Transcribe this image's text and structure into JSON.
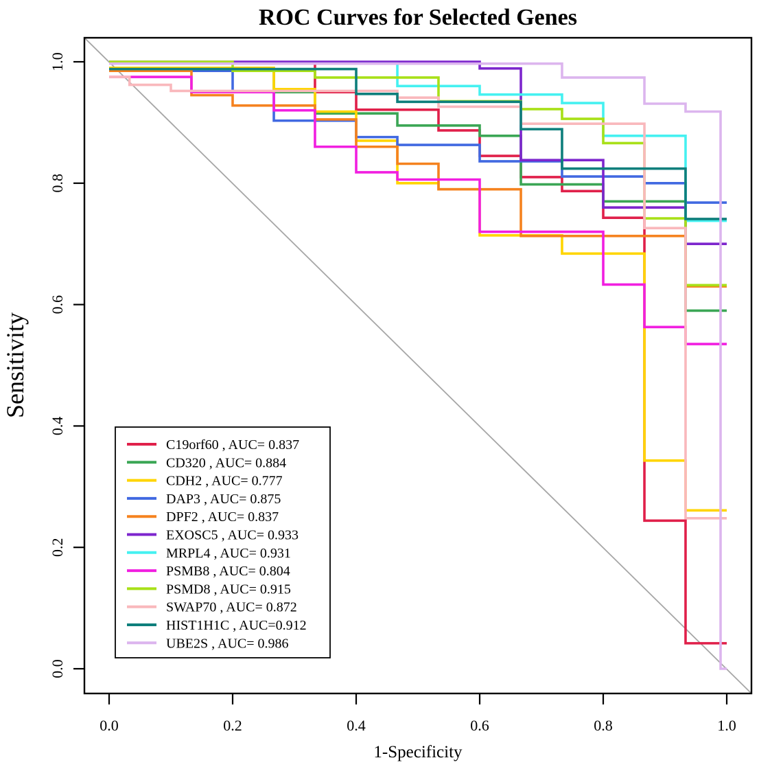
{
  "chart_data": {
    "type": "line",
    "subtype": "roc-step-curves",
    "title": "ROC Curves for Selected Genes",
    "xlabel": "1-Specificity",
    "ylabel": "Sensitivity",
    "xlim": [
      0,
      1
    ],
    "ylim": [
      0,
      1
    ],
    "x_ticks": [
      "0.0",
      "0.2",
      "0.4",
      "0.6",
      "0.8",
      "1.0"
    ],
    "y_ticks": [
      "0.0",
      "0.2",
      "0.4",
      "0.6",
      "0.8",
      "1.0"
    ],
    "grid": false,
    "diagonal_reference_line": true,
    "diagonal_color": "#a6a6a6",
    "legend_position": "bottom-left",
    "series": [
      {
        "name": "C19orf60",
        "auc": 0.837,
        "legend_label": "C19orf60 , AUC= 0.837",
        "color": "#e0204a",
        "start": 0.998,
        "steps": [
          [
            0.3333,
            0.95
          ],
          [
            0.4,
            0.921
          ],
          [
            0.5333,
            0.887
          ],
          [
            0.6,
            0.845
          ],
          [
            0.6667,
            0.81
          ],
          [
            0.7333,
            0.787
          ],
          [
            0.8,
            0.743
          ],
          [
            0.8667,
            0.244
          ],
          [
            0.9333,
            0.042
          ]
        ]
      },
      {
        "name": "CD320",
        "auc": 0.884,
        "legend_label": "CD320 , AUC= 0.884",
        "color": "#3ba655",
        "start": 0.985,
        "steps": [
          [
            0.2667,
            0.95
          ],
          [
            0.3333,
            0.915
          ],
          [
            0.4667,
            0.895
          ],
          [
            0.6,
            0.878
          ],
          [
            0.6667,
            0.798
          ],
          [
            0.8,
            0.77
          ],
          [
            0.9333,
            0.59
          ]
        ]
      },
      {
        "name": "CDH2",
        "auc": 0.777,
        "legend_label": "CDH2 , AUC= 0.777",
        "color": "#ffd500",
        "start": 0.99,
        "steps": [
          [
            0.2667,
            0.955
          ],
          [
            0.3333,
            0.918
          ],
          [
            0.4,
            0.87
          ],
          [
            0.4667,
            0.8
          ],
          [
            0.5333,
            0.79
          ],
          [
            0.6,
            0.714
          ],
          [
            0.7333,
            0.684
          ],
          [
            0.8667,
            0.343
          ],
          [
            0.9333,
            0.261
          ]
        ]
      },
      {
        "name": "DAP3",
        "auc": 0.875,
        "legend_label": "DAP3 , AUC= 0.875",
        "color": "#4169e1",
        "start": 0.985,
        "steps": [
          [
            0.2,
            0.95
          ],
          [
            0.2667,
            0.903
          ],
          [
            0.4,
            0.876
          ],
          [
            0.4667,
            0.863
          ],
          [
            0.6,
            0.836
          ],
          [
            0.7333,
            0.811
          ],
          [
            0.8667,
            0.8
          ],
          [
            0.9333,
            0.768
          ]
        ]
      },
      {
        "name": "DPF2",
        "auc": 0.837,
        "legend_label": "DPF2 , AUC= 0.837",
        "color": "#f5821f",
        "start": 0.985,
        "steps": [
          [
            0.1333,
            0.945
          ],
          [
            0.2,
            0.928
          ],
          [
            0.3333,
            0.905
          ],
          [
            0.4,
            0.86
          ],
          [
            0.4667,
            0.832
          ],
          [
            0.5333,
            0.79
          ],
          [
            0.6667,
            0.713
          ],
          [
            0.9333,
            0.63
          ]
        ]
      },
      {
        "name": "EXOSC5",
        "auc": 0.933,
        "legend_label": "EXOSC5 , AUC= 0.933",
        "color": "#7d26cd",
        "start": 1.0,
        "steps": [
          [
            0.6,
            0.989
          ],
          [
            0.6667,
            0.838
          ],
          [
            0.8,
            0.76
          ],
          [
            0.9333,
            0.7
          ]
        ]
      },
      {
        "name": "MRPL4",
        "auc": 0.931,
        "legend_label": "MRPL4 , AUC= 0.931",
        "color": "#45f1f1",
        "start": 0.997,
        "steps": [
          [
            0.4667,
            0.96
          ],
          [
            0.6,
            0.946
          ],
          [
            0.7333,
            0.932
          ],
          [
            0.8,
            0.878
          ],
          [
            0.9333,
            0.738
          ]
        ]
      },
      {
        "name": "PSMB8",
        "auc": 0.804,
        "legend_label": "PSMB8 , AUC= 0.804",
        "color": "#f11fe0",
        "start": 0.975,
        "steps": [
          [
            0.1333,
            0.95
          ],
          [
            0.2667,
            0.92
          ],
          [
            0.3333,
            0.86
          ],
          [
            0.4,
            0.818
          ],
          [
            0.4667,
            0.806
          ],
          [
            0.6,
            0.72
          ],
          [
            0.8,
            0.633
          ],
          [
            0.8667,
            0.563
          ],
          [
            0.9333,
            0.535
          ]
        ]
      },
      {
        "name": "PSMD8",
        "auc": 0.915,
        "legend_label": "PSMD8 , AUC= 0.915",
        "color": "#a8e018",
        "start": 1.0,
        "steps": [
          [
            0.2,
            0.985
          ],
          [
            0.3333,
            0.974
          ],
          [
            0.5333,
            0.935
          ],
          [
            0.6667,
            0.922
          ],
          [
            0.7333,
            0.906
          ],
          [
            0.8,
            0.866
          ],
          [
            0.8667,
            0.742
          ],
          [
            0.9333,
            0.632
          ]
        ]
      },
      {
        "name": "SWAP70",
        "auc": 0.872,
        "legend_label": "SWAP70 , AUC= 0.872",
        "color": "#f9b8bc",
        "start": 0.975,
        "steps": [
          [
            0.033,
            0.962
          ],
          [
            0.1,
            0.952
          ],
          [
            0.4667,
            0.941
          ],
          [
            0.5333,
            0.926
          ],
          [
            0.6667,
            0.898
          ],
          [
            0.8667,
            0.726
          ],
          [
            0.9333,
            0.248
          ]
        ]
      },
      {
        "name": "HIST1H1C",
        "auc": 0.912,
        "legend_label": "HIST1H1C , AUC=0.912",
        "color": "#0e7f7c",
        "start": 0.988,
        "steps": [
          [
            0.4,
            0.947
          ],
          [
            0.4667,
            0.934
          ],
          [
            0.6667,
            0.889
          ],
          [
            0.7333,
            0.824
          ],
          [
            0.9333,
            0.741
          ]
        ]
      },
      {
        "name": "UBE2S",
        "auc": 0.986,
        "legend_label": "UBE2S , AUC= 0.986",
        "color": "#dcb5ee",
        "start": 0.997,
        "steps": [
          [
            0.7333,
            0.974
          ],
          [
            0.8667,
            0.931
          ],
          [
            0.9333,
            0.918
          ],
          [
            0.99,
            0.0
          ]
        ]
      }
    ]
  }
}
